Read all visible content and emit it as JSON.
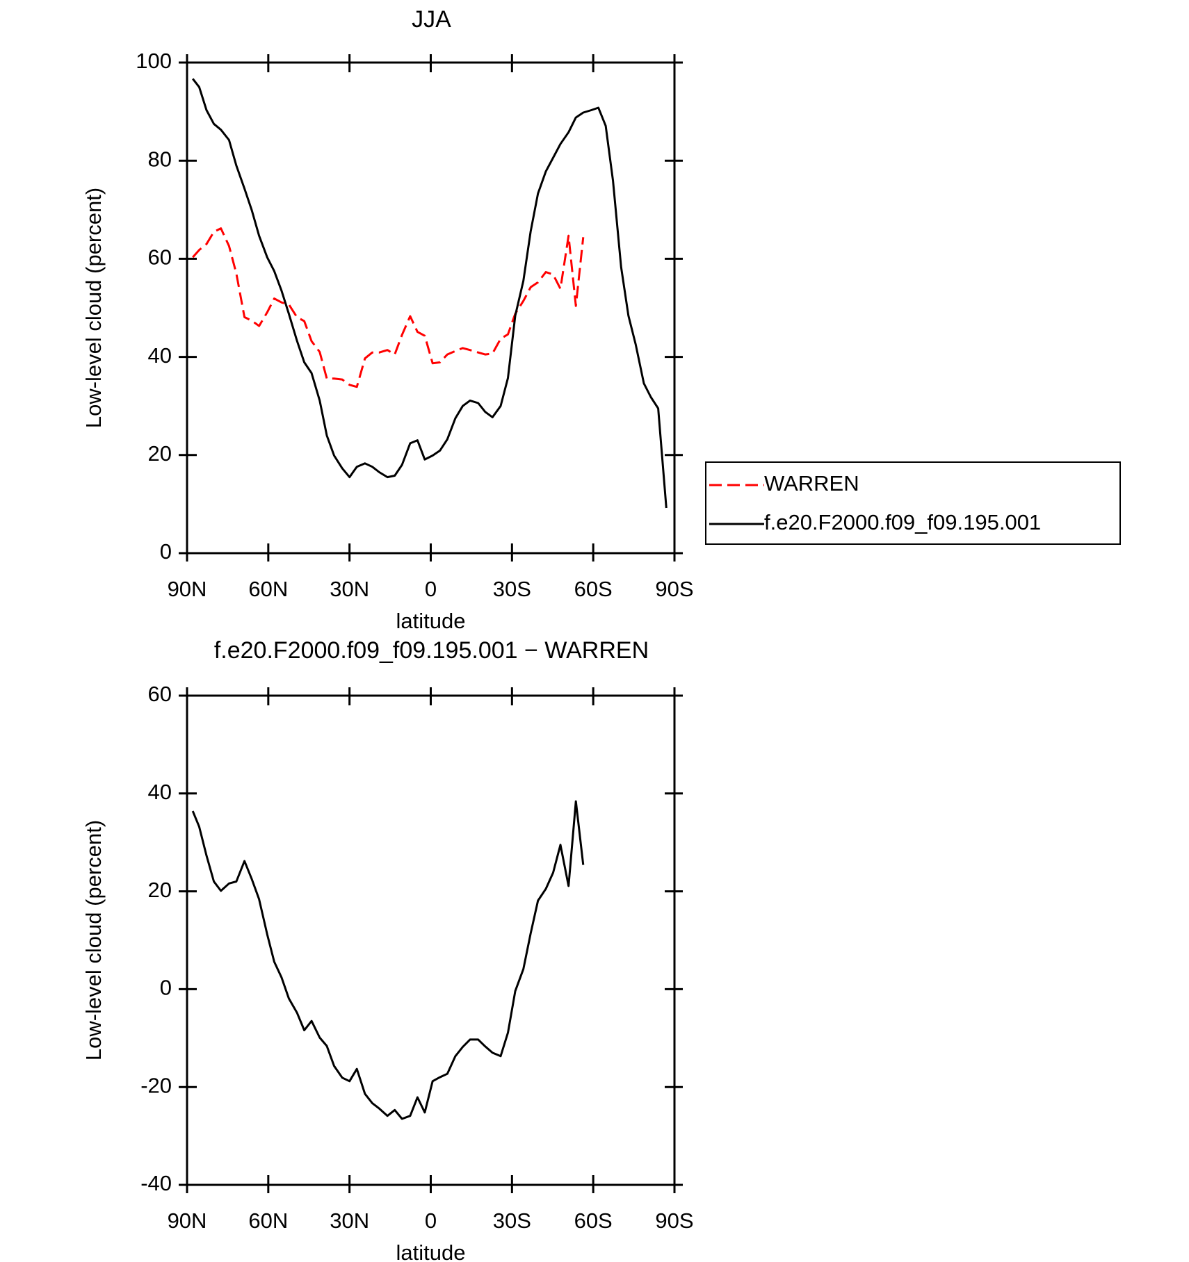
{
  "chart_data": [
    {
      "type": "line",
      "title": "JJA",
      "xlabel": "latitude",
      "ylabel": "Low-level cloud (percent)",
      "x": [
        87.9,
        85.5,
        82.8,
        80.1,
        77.5,
        74.5,
        71.8,
        68.8,
        66.1,
        63.4,
        60.4,
        57.8,
        55.1,
        52.4,
        49.4,
        46.7,
        44,
        41,
        38.4,
        35.7,
        32.7,
        30,
        27.3,
        24.3,
        21.6,
        19,
        16,
        13.3,
        10.6,
        7.6,
        4.9,
        2.2,
        -0.7,
        -3.4,
        -6.1,
        -9.1,
        -11.8,
        -14.5,
        -17.5,
        -20.1,
        -22.8,
        -25.8,
        -28.5,
        -31.2,
        -34.2,
        -36.9,
        -39.6,
        -42.5,
        -45.2,
        -47.9,
        -50.9,
        -53.6,
        -56.3,
        -59.3,
        -61.9,
        -64.6,
        -67.3,
        -70.3,
        -73,
        -75.7,
        -78.7,
        -81.3,
        -84,
        -87
      ],
      "series": [
        {
          "name": "WARREN",
          "color": "#ff0000",
          "dash": true,
          "values": [
            60.3,
            61.8,
            63,
            65.5,
            66.2,
            62.6,
            57,
            48.1,
            47.4,
            46.3,
            49.1,
            51.9,
            51.1,
            50.7,
            48.1,
            47.3,
            43.2,
            41,
            35.6,
            35.6,
            35.4,
            34.3,
            33.9,
            39.7,
            40.9,
            40.9,
            41.4,
            40.5,
            44.5,
            48.3,
            45.1,
            44.3,
            38.7,
            38.9,
            40.5,
            41.2,
            41.8,
            41.4,
            40.9,
            40.5,
            40.7,
            43.7,
            44.6,
            48.8,
            51.4,
            54.2,
            55.2,
            57.3,
            56.8,
            53.9,
            64.7,
            50.4,
            64.4,
            null,
            null,
            null,
            null,
            null,
            null,
            null,
            null,
            null,
            null,
            null
          ]
        },
        {
          "name": "f.e20.F2000.f09_f09.195.001",
          "color": "#000000",
          "dash": false,
          "values": [
            96.7,
            95,
            90.3,
            87.5,
            86.3,
            84.2,
            79,
            74.3,
            69.9,
            64.7,
            60.3,
            57.5,
            53.5,
            48.8,
            43.3,
            38.9,
            36.7,
            31.1,
            24,
            19.9,
            17.3,
            15.5,
            17.6,
            18.3,
            17.6,
            16.5,
            15.5,
            15.8,
            18,
            22.4,
            23,
            19.1,
            19.9,
            20.9,
            23.2,
            27.5,
            30,
            31.1,
            30.6,
            28.8,
            27.7,
            30,
            35.7,
            48.4,
            55.5,
            65.6,
            73.3,
            77.8,
            80.6,
            83.4,
            85.8,
            88.8,
            89.8,
            90.3,
            90.8,
            87.1,
            75.9,
            58.3,
            48.4,
            42.5,
            34.6,
            31.8,
            29.5,
            9.2
          ]
        }
      ],
      "xlim": [
        90,
        -90
      ],
      "xticks": [
        {
          "value": 90,
          "label": "90N"
        },
        {
          "value": 60,
          "label": "60N"
        },
        {
          "value": 30,
          "label": "30N"
        },
        0,
        {
          "value": -30,
          "label": "30S"
        },
        {
          "value": -60,
          "label": "60S"
        },
        {
          "value": -90,
          "label": "90S"
        }
      ],
      "ylim": [
        0,
        100
      ],
      "yticks": [
        0,
        20,
        40,
        60,
        80,
        100
      ],
      "legend": "outside-right"
    },
    {
      "type": "line",
      "title": "f.e20.F2000.f09_f09.195.001 − WARREN",
      "xlabel": "latitude",
      "ylabel": "Low-level cloud (percent)",
      "x": [
        87.9,
        85.5,
        82.8,
        80.1,
        77.5,
        74.5,
        71.8,
        68.8,
        66.1,
        63.4,
        60.4,
        57.8,
        55.1,
        52.4,
        49.4,
        46.7,
        44,
        41,
        38.4,
        35.7,
        32.7,
        30,
        27.3,
        24.3,
        21.6,
        19,
        16,
        13.3,
        10.6,
        7.6,
        4.9,
        2.2,
        -0.7,
        -3.4,
        -6.1,
        -9.1,
        -11.8,
        -14.5,
        -17.5,
        -20.1,
        -22.8,
        -25.8,
        -28.5,
        -31.2,
        -34.2,
        -36.9,
        -39.6,
        -42.5,
        -45.2,
        -47.9,
        -50.9,
        -53.6,
        -56.3
      ],
      "series": [
        {
          "color": "#000000",
          "dash": false,
          "values": [
            36.4,
            33.2,
            27.3,
            22,
            20.1,
            21.6,
            22,
            26.2,
            22.5,
            18.4,
            11.2,
            5.6,
            2.4,
            -1.9,
            -4.8,
            -8.4,
            -6.5,
            -9.9,
            -11.6,
            -15.7,
            -18.1,
            -18.8,
            -16.3,
            -21.4,
            -23.3,
            -24.4,
            -25.9,
            -24.7,
            -26.5,
            -25.9,
            -22.1,
            -25.2,
            -18.8,
            -18,
            -17.3,
            -13.7,
            -11.8,
            -10.3,
            -10.3,
            -11.7,
            -13,
            -13.7,
            -8.9,
            -0.4,
            4.1,
            11.4,
            18.1,
            20.5,
            23.8,
            29.5,
            21.1,
            38.4,
            25.4
          ]
        }
      ],
      "xlim": [
        90,
        -90
      ],
      "xticks": [
        {
          "value": 90,
          "label": "90N"
        },
        {
          "value": 60,
          "label": "60N"
        },
        {
          "value": 30,
          "label": "30N"
        },
        0,
        {
          "value": -30,
          "label": "30S"
        },
        {
          "value": -60,
          "label": "60S"
        },
        {
          "value": -90,
          "label": "90S"
        }
      ],
      "ylim": [
        -40,
        60
      ],
      "yticks": [
        -40,
        -20,
        0,
        20,
        40,
        60
      ]
    }
  ]
}
